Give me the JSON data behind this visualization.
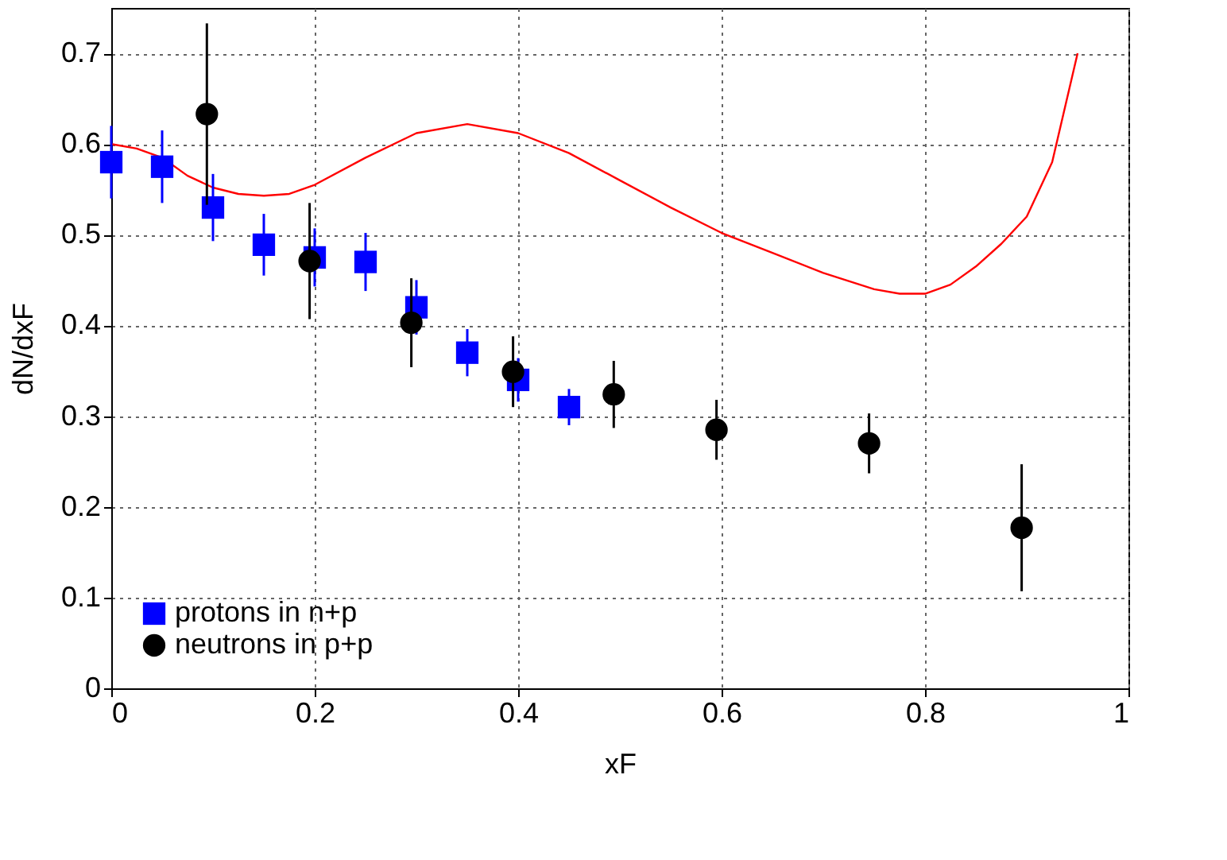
{
  "chart_data": {
    "type": "scatter",
    "xlabel": "xF",
    "ylabel": "dN/dxF",
    "xlim": [
      0,
      1
    ],
    "ylim": [
      0,
      0.75
    ],
    "xticks": [
      0,
      0.2,
      0.4,
      0.6,
      0.8,
      1
    ],
    "yticks": [
      0,
      0.1,
      0.2,
      0.3,
      0.4,
      0.5,
      0.6,
      0.7
    ],
    "grid": true,
    "legend": "bottom left",
    "series": [
      {
        "type": "line",
        "color": "#ff0000",
        "marker": "none",
        "x": [
          0,
          0.025,
          0.05,
          0.075,
          0.1,
          0.125,
          0.15,
          0.175,
          0.2,
          0.25,
          0.3,
          0.35,
          0.4,
          0.45,
          0.5,
          0.55,
          0.6,
          0.65,
          0.7,
          0.75,
          0.775,
          0.8,
          0.825,
          0.85,
          0.875,
          0.9,
          0.925,
          0.95
        ],
        "values": [
          0.6,
          0.595,
          0.585,
          0.565,
          0.552,
          0.545,
          0.543,
          0.545,
          0.555,
          0.585,
          0.612,
          0.622,
          0.612,
          0.59,
          0.56,
          0.53,
          0.502,
          0.48,
          0.458,
          0.44,
          0.435,
          0.435,
          0.445,
          0.465,
          0.49,
          0.52,
          0.58,
          0.7
        ]
      },
      {
        "name": "protons in n+p",
        "color": "#0000ff",
        "marker": "square",
        "x": [
          0,
          0.05,
          0.1,
          0.15,
          0.2,
          0.25,
          0.3,
          0.35,
          0.4,
          0.45
        ],
        "values": [
          0.58,
          0.575,
          0.53,
          0.489,
          0.475,
          0.47,
          0.42,
          0.37,
          0.34,
          0.31
        ],
        "errors": [
          0.04,
          0.04,
          0.037,
          0.034,
          0.032,
          0.032,
          0.03,
          0.026,
          0.024,
          0.02
        ]
      },
      {
        "name": "neutrons in p+p",
        "color": "#000000",
        "marker": "circle",
        "x": [
          0.094,
          0.195,
          0.295,
          0.395,
          0.494,
          0.595,
          0.745,
          0.895
        ],
        "values": [
          0.633,
          0.471,
          0.403,
          0.349,
          0.324,
          0.285,
          0.27,
          0.177
        ],
        "errors": [
          0.1,
          0.064,
          0.049,
          0.039,
          0.037,
          0.033,
          0.033,
          0.07
        ]
      }
    ]
  }
}
